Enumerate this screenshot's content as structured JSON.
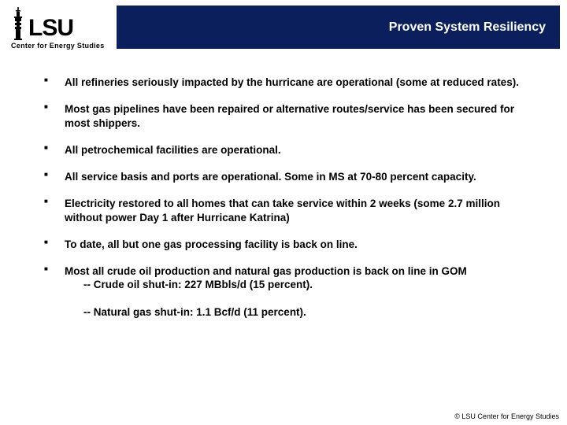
{
  "header": {
    "title": "Proven System Resiliency",
    "bg_color": "#0a1f5c",
    "text_color": "#ffffff"
  },
  "logo": {
    "name": "LSU",
    "subtitle": "Center for Energy Studies"
  },
  "bullets": [
    {
      "text": "All refineries seriously impacted by the hurricane are operational (some at reduced rates)."
    },
    {
      "text": "Most gas pipelines have been repaired or alternative routes/service has been secured for most shippers."
    },
    {
      "text": "All petrochemical facilities are operational."
    },
    {
      "text": "All service basis and ports are operational.  Some in MS at 70-80 percent capacity."
    },
    {
      "text": "Electricity restored to all homes that can take service within 2 weeks (some 2.7 million without power Day 1 after Hurricane Katrina)"
    },
    {
      "text": "To date, all but one gas processing facility is back on line."
    },
    {
      "text": "Most all crude oil production and natural gas production is back on line in GOM",
      "sub": [
        "-- Crude oil shut-in: 227 MBbls/d (15 percent).",
        "-- Natural gas shut-in: 1.1 Bcf/d (11 percent)."
      ]
    }
  ],
  "footer": "© LSU Center for Energy Studies",
  "style": {
    "body_bg": "#ffffff",
    "bullet_color": "#000000",
    "bullet_fontsize": 13.5,
    "bullet_fontweight": "bold",
    "header_fontsize": 16,
    "footer_fontsize": 9
  }
}
